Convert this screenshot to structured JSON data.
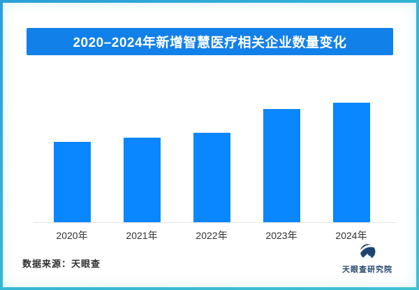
{
  "page": {
    "background": "#ffffff",
    "frame_border_colors": [
      "#2b9fd9",
      "#3fc2d2"
    ]
  },
  "header": {
    "title": "2020–2024年新增智慧医疗相关企业数量变化",
    "banner_color": "#1280e9",
    "text_color": "#ffffff"
  },
  "chart_data": {
    "type": "bar",
    "title": "2020–2024年新增智慧医疗相关企业数量变化",
    "categories": [
      "2020年",
      "2021年",
      "2022年",
      "2023年",
      "2024年"
    ],
    "values": [
      67,
      71,
      75,
      95,
      100
    ],
    "value_axis": "unlabeled — values are relative bar heights (% of tallest bar)",
    "xlabel": "",
    "ylabel": "",
    "ylim": [
      0,
      100
    ],
    "bar_color": "#0a86ff",
    "axis_line_color": "#e6e6e6",
    "grid": false,
    "legend": false
  },
  "footer": {
    "source_label": "数据来源：天眼查",
    "logo_text": "天眼查研究院",
    "logo_color": "#1d4471"
  }
}
